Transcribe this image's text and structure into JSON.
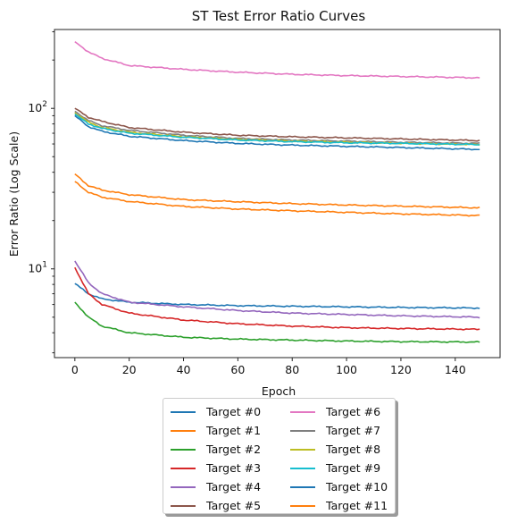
{
  "chart_data": {
    "type": "line",
    "title": "ST Test Error Ratio Curves",
    "xlabel": "Epoch",
    "ylabel": "Error Ratio (Log Scale)",
    "xlim": [
      -7.5,
      156.5
    ],
    "ylim": [
      2.8,
      310
    ],
    "yscale": "log",
    "grid": false,
    "legend_placement": "below-center",
    "x_ticks": [
      0,
      20,
      40,
      60,
      80,
      100,
      120,
      140
    ],
    "y_ticks": [
      10,
      100
    ],
    "y_tick_labels": [
      "10^1",
      "10^2"
    ],
    "epochs": 150,
    "series": [
      {
        "name": "Target #0",
        "color": "#1f77b4",
        "values": [
          [
            0,
            8.1
          ],
          [
            5,
            7.0
          ],
          [
            10,
            6.5
          ],
          [
            20,
            6.2
          ],
          [
            40,
            6.0
          ],
          [
            60,
            5.9
          ],
          [
            80,
            5.85
          ],
          [
            100,
            5.8
          ],
          [
            120,
            5.75
          ],
          [
            149,
            5.7
          ]
        ]
      },
      {
        "name": "Target #1",
        "color": "#ff7f0e",
        "values": [
          [
            0,
            39
          ],
          [
            5,
            33
          ],
          [
            10,
            31
          ],
          [
            20,
            29
          ],
          [
            40,
            27
          ],
          [
            60,
            26.2
          ],
          [
            80,
            25.5
          ],
          [
            100,
            25
          ],
          [
            120,
            24.6
          ],
          [
            149,
            24
          ]
        ]
      },
      {
        "name": "Target #2",
        "color": "#2ca02c",
        "values": [
          [
            0,
            6.2
          ],
          [
            5,
            5.0
          ],
          [
            10,
            4.4
          ],
          [
            20,
            4.0
          ],
          [
            40,
            3.75
          ],
          [
            60,
            3.65
          ],
          [
            80,
            3.6
          ],
          [
            100,
            3.55
          ],
          [
            120,
            3.52
          ],
          [
            149,
            3.5
          ]
        ]
      },
      {
        "name": "Target #3",
        "color": "#d62728",
        "values": [
          [
            0,
            10.2
          ],
          [
            5,
            7.0
          ],
          [
            10,
            6.0
          ],
          [
            20,
            5.3
          ],
          [
            40,
            4.8
          ],
          [
            60,
            4.55
          ],
          [
            80,
            4.4
          ],
          [
            100,
            4.3
          ],
          [
            120,
            4.25
          ],
          [
            149,
            4.2
          ]
        ]
      },
      {
        "name": "Target #4",
        "color": "#9467bd",
        "values": [
          [
            0,
            11.2
          ],
          [
            5,
            8.2
          ],
          [
            10,
            7.0
          ],
          [
            20,
            6.2
          ],
          [
            40,
            5.8
          ],
          [
            60,
            5.5
          ],
          [
            80,
            5.3
          ],
          [
            100,
            5.2
          ],
          [
            120,
            5.1
          ],
          [
            149,
            5.0
          ]
        ]
      },
      {
        "name": "Target #5",
        "color": "#8c564b",
        "values": [
          [
            0,
            100
          ],
          [
            5,
            88
          ],
          [
            10,
            83
          ],
          [
            20,
            76
          ],
          [
            40,
            71
          ],
          [
            60,
            68
          ],
          [
            80,
            66.5
          ],
          [
            100,
            65.5
          ],
          [
            120,
            64.5
          ],
          [
            149,
            63
          ]
        ]
      },
      {
        "name": "Target #6",
        "color": "#e377c2",
        "values": [
          [
            0,
            260
          ],
          [
            5,
            225
          ],
          [
            10,
            205
          ],
          [
            20,
            185
          ],
          [
            40,
            175
          ],
          [
            60,
            168
          ],
          [
            80,
            163
          ],
          [
            100,
            160
          ],
          [
            120,
            158
          ],
          [
            149,
            155
          ]
        ]
      },
      {
        "name": "Target #7",
        "color": "#7f7f7f",
        "values": [
          [
            0,
            96
          ],
          [
            5,
            84
          ],
          [
            10,
            78
          ],
          [
            20,
            73
          ],
          [
            40,
            68
          ],
          [
            60,
            65
          ],
          [
            80,
            63.5
          ],
          [
            100,
            62.5
          ],
          [
            120,
            61.5
          ],
          [
            149,
            60.5
          ]
        ]
      },
      {
        "name": "Target #8",
        "color": "#bcbd22",
        "values": [
          [
            0,
            94
          ],
          [
            5,
            82
          ],
          [
            10,
            76
          ],
          [
            20,
            71
          ],
          [
            40,
            66.5
          ],
          [
            60,
            64
          ],
          [
            80,
            62.5
          ],
          [
            100,
            61.5
          ],
          [
            120,
            60.5
          ],
          [
            149,
            59.5
          ]
        ]
      },
      {
        "name": "Target #9",
        "color": "#17becf",
        "values": [
          [
            0,
            92
          ],
          [
            5,
            80
          ],
          [
            10,
            75
          ],
          [
            20,
            70
          ],
          [
            40,
            66
          ],
          [
            60,
            63.5
          ],
          [
            80,
            62
          ],
          [
            100,
            61
          ],
          [
            120,
            60.5
          ],
          [
            149,
            59.5
          ]
        ]
      },
      {
        "name": "Target #10",
        "color": "#1f77b4",
        "values": [
          [
            0,
            90
          ],
          [
            5,
            77
          ],
          [
            10,
            72
          ],
          [
            20,
            67
          ],
          [
            40,
            63
          ],
          [
            60,
            60.5
          ],
          [
            80,
            59
          ],
          [
            100,
            58
          ],
          [
            120,
            57
          ],
          [
            149,
            55.5
          ]
        ]
      },
      {
        "name": "Target #11",
        "color": "#ff7f0e",
        "values": [
          [
            0,
            35
          ],
          [
            5,
            30
          ],
          [
            10,
            28
          ],
          [
            20,
            26.3
          ],
          [
            40,
            24.5
          ],
          [
            60,
            23.6
          ],
          [
            80,
            23
          ],
          [
            100,
            22.5
          ],
          [
            120,
            22
          ],
          [
            149,
            21.5
          ]
        ]
      }
    ]
  }
}
